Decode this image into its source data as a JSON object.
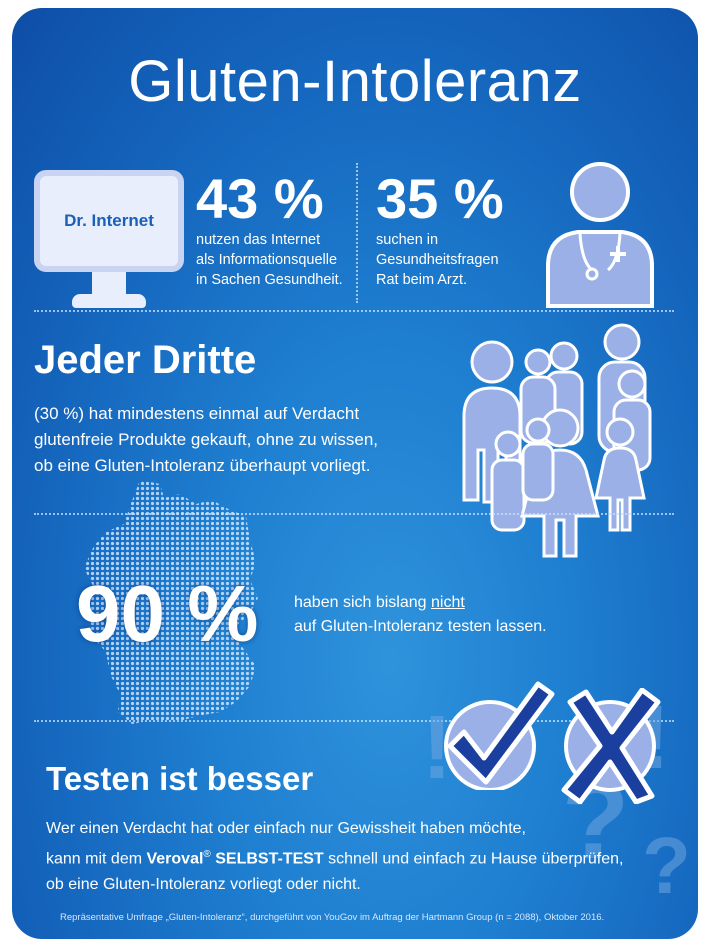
{
  "title": "Gluten-Intoleranz",
  "stats": {
    "internet": {
      "icon_label": "Dr. Internet",
      "value": "43 %",
      "lines": [
        "nutzen das Internet",
        "als Informationsquelle",
        "in Sachen Gesundheit."
      ]
    },
    "doctor": {
      "value": "35 %",
      "lines": [
        "suchen in",
        "Gesundheitsfragen",
        "Rat beim Arzt."
      ]
    }
  },
  "jeder_dritte": {
    "heading": "Jeder Dritte",
    "lines": [
      "(30 %) hat mindestens einmal auf Verdacht",
      "glutenfreie Produkte gekauft, ohne zu wissen,",
      "ob eine Gluten-Intoleranz überhaupt vorliegt."
    ]
  },
  "not_tested": {
    "value": "90 %",
    "line1_pre": "haben sich bislang ",
    "line1_emph": "nicht",
    "line2": "auf Gluten-Intoleranz testen lassen."
  },
  "testen": {
    "heading": "Testen ist besser",
    "line1": "Wer einen Verdacht hat oder einfach nur Gewissheit haben möchte,",
    "line2_pre": "kann mit dem ",
    "line2_brand": "Veroval",
    "line2_reg": "®",
    "line2_product": " SELBST-TEST",
    "line2_post": " schnell und einfach zu Hause überprüfen,",
    "line3": "ob eine Gluten-Intoleranz vorliegt oder nicht."
  },
  "footnote": "Repräsentative Umfrage „Gluten-Intoleranz“, durchgeführt von YouGov im Auftrag der Hartmann Group (n = 2088), Oktober 2016.",
  "colors": {
    "background": "#1e7ed0",
    "icon_fill": "#9ab0e6",
    "icon_outline": "#ffffff",
    "text": "#ffffff"
  },
  "icons": [
    "monitor-icon",
    "doctor-icon",
    "people-group-icon",
    "germany-map-icon",
    "checkmark-icon",
    "cross-icon",
    "question-marks-icon"
  ]
}
